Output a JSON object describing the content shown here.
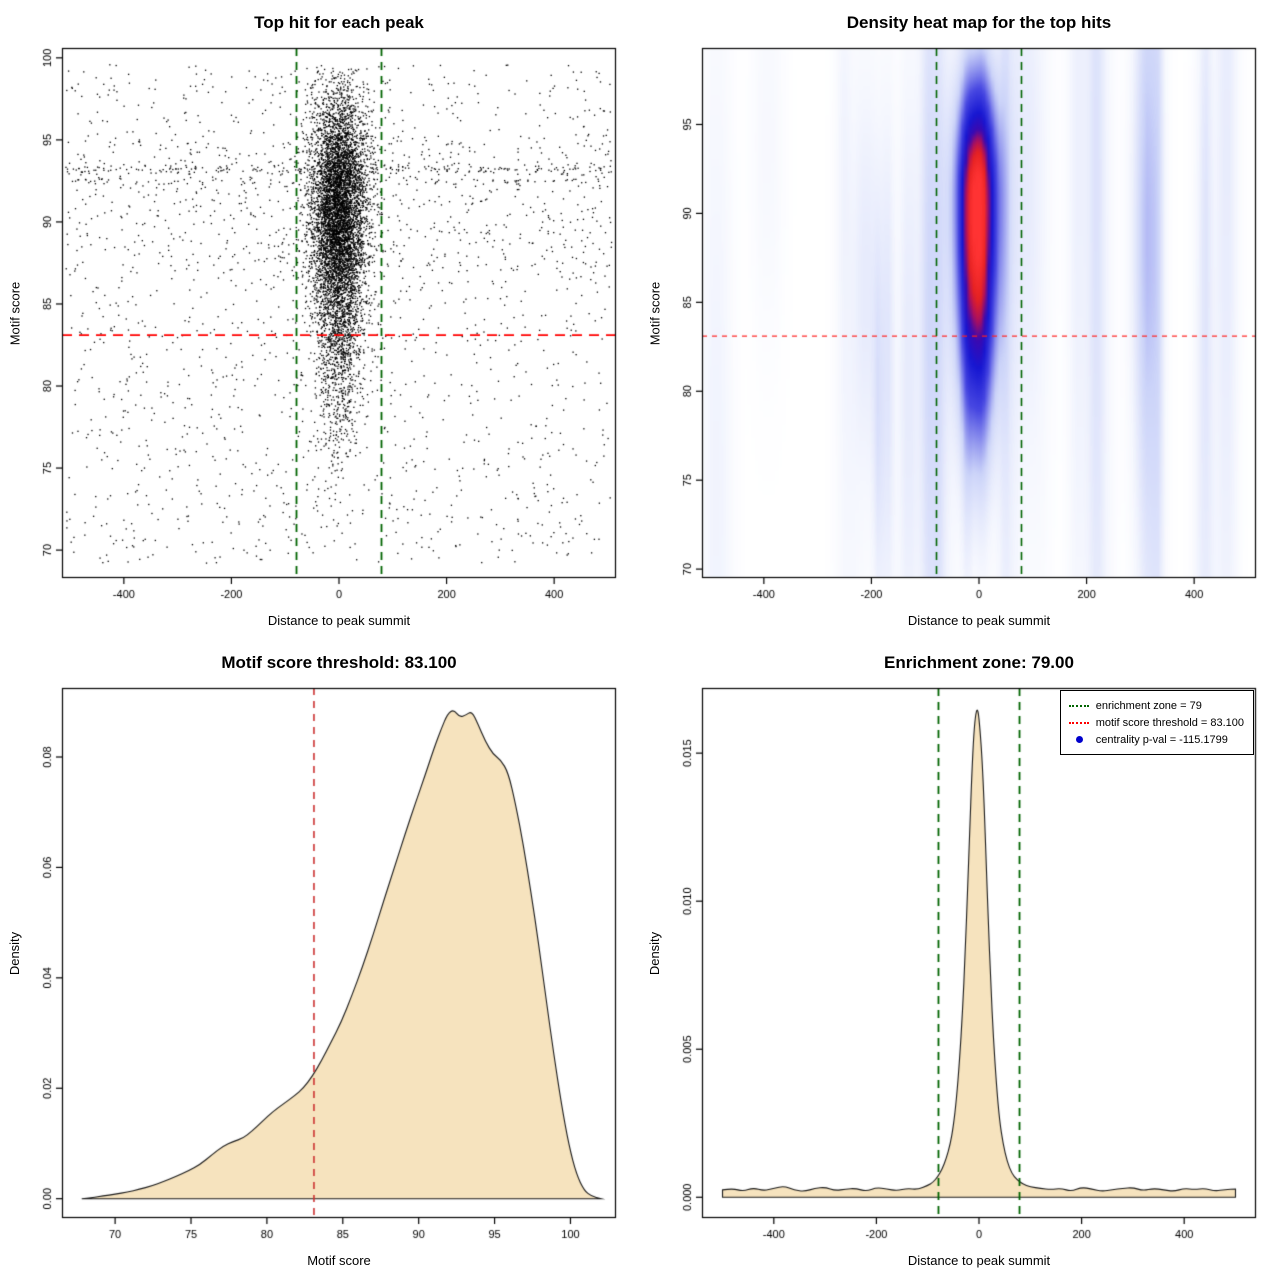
{
  "figure": {
    "background": "#ffffff"
  },
  "chart_data": [
    {
      "type": "scatter",
      "title": "Top hit for each peak",
      "xlabel": "Distance to peak summit",
      "ylabel": "Motif score",
      "xlim": [
        -515,
        515
      ],
      "ylim": [
        68.3,
        100.6
      ],
      "xticks": {
        "values": [
          -400,
          -200,
          0,
          200,
          400
        ],
        "labels": [
          "-400",
          "-200",
          "0",
          "200",
          "400"
        ]
      },
      "yticks": {
        "values": [
          70,
          75,
          80,
          85,
          90,
          95,
          100
        ],
        "labels": [
          "70",
          "75",
          "80",
          "85",
          "90",
          "95",
          "100"
        ]
      },
      "point_color": "#000000",
      "seed": 11,
      "clusters": [
        {
          "n": 5200,
          "x_mean": 0,
          "x_sd": 26,
          "x_clip": [
            -83,
            83
          ],
          "y_mean": 91.2,
          "y_sd": 3.4,
          "y_clip": [
            77,
            99.4
          ]
        },
        {
          "n": 1500,
          "x_mean": 0,
          "x_sd": 23,
          "x_clip": [
            -80,
            80
          ],
          "y_mean": 84.5,
          "y_sd": 4.2,
          "y_clip": [
            70.5,
            90
          ]
        },
        {
          "n": 260,
          "x_mean": 0,
          "x_sd": 60,
          "x_clip": [
            -160,
            160
          ],
          "y_mean": 90,
          "y_sd": 5,
          "y_clip": [
            74,
            99
          ]
        }
      ],
      "bands": [
        {
          "n": 210,
          "y": 93.2,
          "y_sd": 0.15
        },
        {
          "n": 90,
          "y": 92.5,
          "y_sd": 0.12
        }
      ],
      "background": {
        "n": 1500,
        "x_range": [
          -508,
          508
        ],
        "y_range": [
          69.2,
          99.6
        ],
        "extra_mid_n": 350,
        "mid_y_range": [
          87,
          95
        ]
      },
      "hlines": [
        {
          "y": 83.1,
          "color": "#ff0000",
          "width": 1.8,
          "dash": [
            10,
            7
          ]
        }
      ],
      "vlines": [
        {
          "x": -79,
          "color": "#006400",
          "width": 1.8,
          "dash": [
            8,
            6
          ]
        },
        {
          "x": 79,
          "color": "#006400",
          "width": 1.8,
          "dash": [
            8,
            6
          ]
        }
      ]
    },
    {
      "type": "heatmap",
      "title": "Density heat map for the top hits",
      "xlabel": "Distance to peak summit",
      "ylabel": "Motif score",
      "xlim": [
        -515,
        515
      ],
      "ylim": [
        69.5,
        99.3
      ],
      "xticks": {
        "values": [
          -400,
          -200,
          0,
          200,
          400
        ],
        "labels": [
          "-400",
          "-200",
          "0",
          "200",
          "400"
        ]
      },
      "yticks": {
        "values": [
          70,
          75,
          80,
          85,
          90,
          95
        ],
        "labels": [
          "70",
          "75",
          "80",
          "85",
          "90",
          "95"
        ]
      },
      "density": {
        "blobs": [
          {
            "x": -3,
            "y": 90.8,
            "sx": 26,
            "sy_up": 4.6,
            "sy_down": 7.4,
            "a": 1.0
          },
          {
            "x": -3,
            "y": 81.5,
            "sx": 20,
            "sy_up": 5,
            "sy_down": 5,
            "a": 0.14
          }
        ],
        "streaks": {
          "n": 30,
          "seed": 7,
          "x_range": [
            -500,
            500
          ],
          "y_range": [
            73,
            97
          ],
          "a_min": 0.03,
          "a_max": 0.1
        }
      },
      "colormap": [
        [
          0,
          "#ffffff"
        ],
        [
          0.05,
          "#f5f7fe"
        ],
        [
          0.2,
          "#ccd4f9"
        ],
        [
          0.42,
          "#4848e2"
        ],
        [
          0.6,
          "#1717d2"
        ],
        [
          0.72,
          "#3a0ab2"
        ],
        [
          0.8,
          "#aa1060"
        ],
        [
          0.88,
          "#e62222"
        ],
        [
          1,
          "#ff3333"
        ]
      ],
      "hlines": [
        {
          "y": 83.1,
          "color": "#ff2222",
          "width": 1.2,
          "dash": [
            5,
            5
          ]
        }
      ],
      "vlines": [
        {
          "x": -79,
          "color": "#006400",
          "width": 1.6,
          "dash": [
            8,
            6
          ]
        },
        {
          "x": 79,
          "color": "#006400",
          "width": 1.6,
          "dash": [
            8,
            6
          ]
        }
      ]
    },
    {
      "type": "area",
      "title": "Motif score threshold: 83.100",
      "xlabel": "Motif score",
      "ylabel": "Density",
      "xlim": [
        66.5,
        103
      ],
      "ylim": [
        -0.0035,
        0.0925
      ],
      "xticks": {
        "values": [
          70,
          75,
          80,
          85,
          90,
          95,
          100
        ],
        "labels": [
          "70",
          "75",
          "80",
          "85",
          "90",
          "95",
          "100"
        ]
      },
      "yticks": {
        "values": [
          0,
          0.02,
          0.04,
          0.06,
          0.08
        ],
        "labels": [
          "0.00",
          "0.02",
          "0.04",
          "0.06",
          "0.08"
        ]
      },
      "fill": "#f6e3be",
      "stroke": "#1a1a1a",
      "curve": {
        "x": [
          67.8,
          68.5,
          69.2,
          70,
          70.8,
          71.6,
          72.4,
          73.2,
          74,
          74.8,
          75.6,
          76.4,
          77.1,
          77.8,
          78.4,
          79,
          79.7,
          80.4,
          81.1,
          81.8,
          82.4,
          83,
          83.6,
          84.2,
          84.9,
          85.6,
          86.3,
          87,
          87.7,
          88.4,
          89.1,
          89.8,
          90.4,
          91,
          91.5,
          91.9,
          92.3,
          92.7,
          93.1,
          93.5,
          93.9,
          94.4,
          94.9,
          95.4,
          95.9,
          96.4,
          96.9,
          97.4,
          97.9,
          98.4,
          98.9,
          99.4,
          99.9,
          100.4,
          100.9,
          101.4,
          102
        ],
        "y": [
          0,
          0.0002,
          0.0005,
          0.0008,
          0.0012,
          0.0017,
          0.0023,
          0.0031,
          0.004,
          0.005,
          0.0062,
          0.008,
          0.0095,
          0.0104,
          0.0109,
          0.0122,
          0.014,
          0.0158,
          0.0172,
          0.0186,
          0.02,
          0.0222,
          0.025,
          0.0282,
          0.032,
          0.0368,
          0.042,
          0.0478,
          0.054,
          0.06,
          0.066,
          0.0718,
          0.0765,
          0.0815,
          0.0852,
          0.0878,
          0.0886,
          0.0872,
          0.0876,
          0.0883,
          0.086,
          0.0828,
          0.0805,
          0.0795,
          0.0772,
          0.0713,
          0.064,
          0.0555,
          0.0462,
          0.036,
          0.0262,
          0.0172,
          0.0096,
          0.0044,
          0.0015,
          0.0004,
          0
        ]
      },
      "vlines": [
        {
          "x": 83.1,
          "color": "#cc3333",
          "width": 1.6,
          "dash": [
            7,
            6
          ]
        }
      ]
    },
    {
      "type": "area",
      "title": "Enrichment zone: 79.00",
      "xlabel": "Distance to peak summit",
      "ylabel": "Density",
      "xlim": [
        -540,
        540
      ],
      "ylim": [
        -0.0007,
        0.0172
      ],
      "xticks": {
        "values": [
          -400,
          -200,
          0,
          200,
          400
        ],
        "labels": [
          "-400",
          "-200",
          "0",
          "200",
          "400"
        ]
      },
      "yticks": {
        "values": [
          0,
          0.005,
          0.01,
          0.015
        ],
        "labels": [
          "0.000",
          "0.005",
          "0.010",
          "0.015"
        ]
      },
      "fill": "#f6e3be",
      "stroke": "#1a1a1a",
      "curve": {
        "x": [
          -500,
          -480,
          -460,
          -440,
          -420,
          -400,
          -380,
          -360,
          -340,
          -320,
          -300,
          -280,
          -260,
          -240,
          -220,
          -200,
          -180,
          -160,
          -140,
          -120,
          -100,
          -90,
          -80,
          -72,
          -64,
          -56,
          -50,
          -44,
          -38,
          -32,
          -27,
          -22,
          -18,
          -14,
          -10,
          -6,
          -2,
          2,
          6,
          10,
          14,
          18,
          23,
          28,
          34,
          40,
          47,
          55,
          64,
          74,
          85,
          100,
          120,
          140,
          160,
          180,
          200,
          220,
          240,
          260,
          280,
          300,
          320,
          340,
          360,
          380,
          400,
          420,
          440,
          460,
          480,
          500
        ],
        "y": [
          0.00025,
          0.0003,
          0.0002,
          0.00032,
          0.00022,
          0.0003,
          0.00038,
          0.00024,
          0.0002,
          0.0003,
          0.00034,
          0.00022,
          0.00028,
          0.0003,
          0.0002,
          0.00033,
          0.00028,
          0.00022,
          0.0003,
          0.00026,
          0.0004,
          0.0005,
          0.0007,
          0.00095,
          0.0013,
          0.0018,
          0.0024,
          0.0033,
          0.0046,
          0.0063,
          0.0082,
          0.0105,
          0.0124,
          0.0143,
          0.0157,
          0.0164,
          0.0165,
          0.0158,
          0.0148,
          0.0133,
          0.0113,
          0.0094,
          0.0072,
          0.0054,
          0.0038,
          0.0026,
          0.0018,
          0.0012,
          0.0008,
          0.0006,
          0.00045,
          0.00035,
          0.0003,
          0.00026,
          0.0003,
          0.0002,
          0.00034,
          0.00028,
          0.0002,
          0.00026,
          0.0003,
          0.00033,
          0.00022,
          0.0003,
          0.00025,
          0.0002,
          0.0003,
          0.00026,
          0.0003,
          0.00021,
          0.00026,
          0.00028
        ]
      },
      "vlines": [
        {
          "x": -79,
          "color": "#006400",
          "width": 1.8,
          "dash": [
            8,
            6
          ]
        },
        {
          "x": 79,
          "color": "#006400",
          "width": 1.8,
          "dash": [
            8,
            6
          ]
        }
      ],
      "legend": {
        "items": [
          {
            "marker": "dotted-line",
            "color": "#006400",
            "label": "enrichment zone = 79"
          },
          {
            "marker": "dotted-line",
            "color": "#ff0000",
            "label": "motif score threshold = 83.100"
          },
          {
            "marker": "dot",
            "color": "#0000cd",
            "label": "centrality p-val = -115.1799"
          }
        ]
      }
    }
  ]
}
